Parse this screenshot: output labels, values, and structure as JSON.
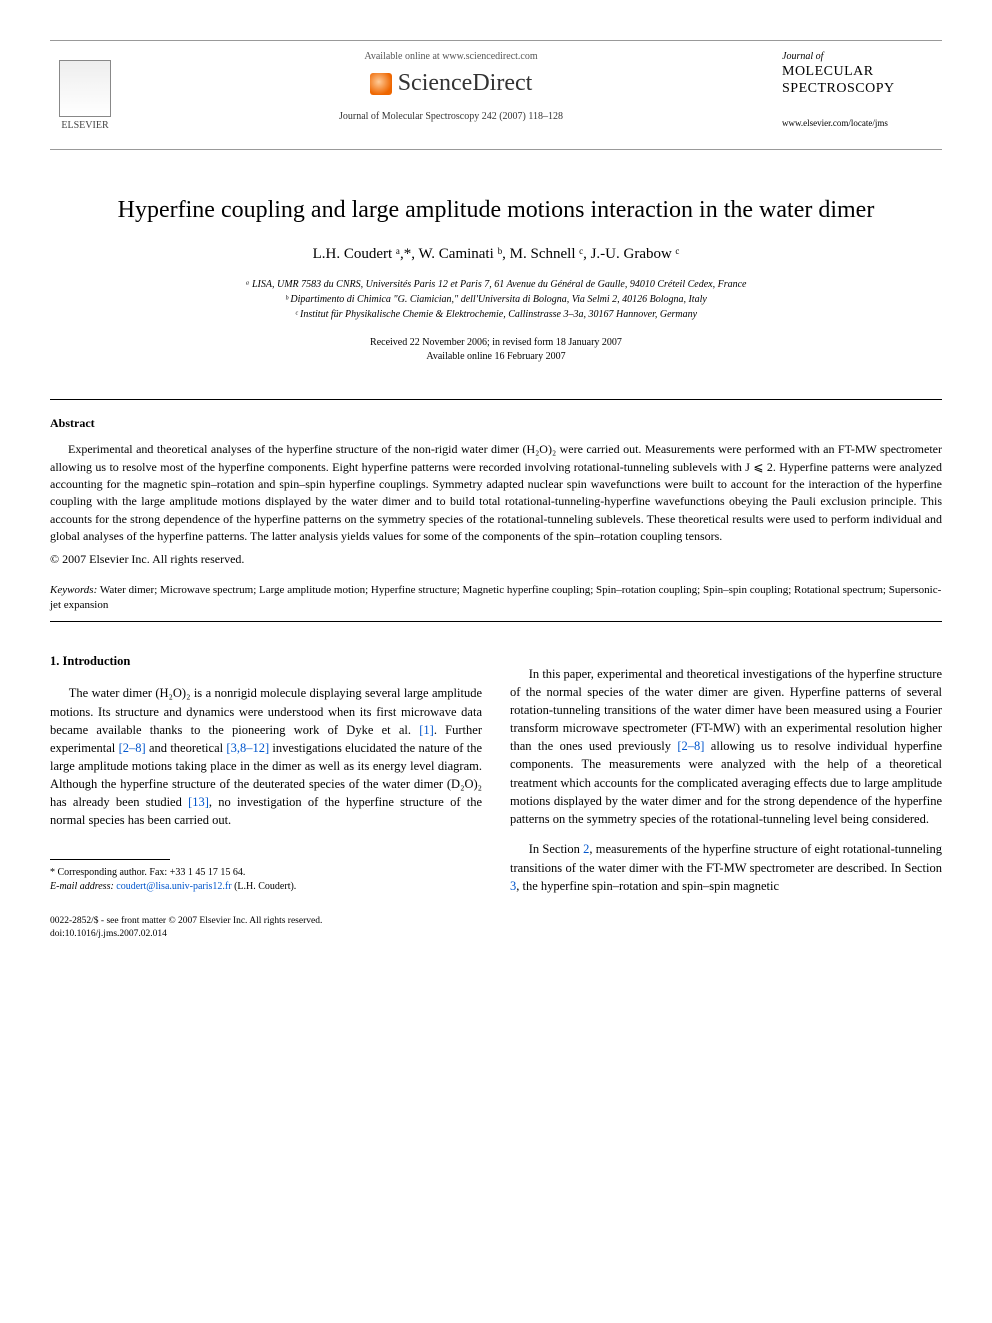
{
  "header": {
    "availability": "Available online at www.sciencedirect.com",
    "sd_brand": "ScienceDirect",
    "journal_ref": "Journal of Molecular Spectroscopy 242 (2007) 118–128",
    "elsevier_label": "ELSEVIER",
    "journal_small": "Journal of",
    "journal_big": "MOLECULAR SPECTROSCOPY",
    "journal_url": "www.elsevier.com/locate/jms"
  },
  "title": "Hyperfine coupling and large amplitude motions interaction in the water dimer",
  "authors": "L.H. Coudert ᵃ,*, W. Caminati ᵇ, M. Schnell ᶜ, J.-U. Grabow ᶜ",
  "affiliations": {
    "a": "ᵃ LISA, UMR 7583 du CNRS, Universités Paris 12 et Paris 7, 61 Avenue du Général de Gaulle, 94010 Créteil Cedex, France",
    "b": "ᵇ Dipartimento di Chimica \"G. Ciamician,\" dell'Universita di Bologna, Via Selmi 2, 40126 Bologna, Italy",
    "c": "ᶜ Institut für Physikalische Chemie & Elektrochemie, Callinstrasse 3–3a, 30167 Hannover, Germany"
  },
  "dates": {
    "received": "Received 22 November 2006; in revised form 18 January 2007",
    "online": "Available online 16 February 2007"
  },
  "abstract_heading": "Abstract",
  "abstract_text": "Experimental and theoretical analyses of the hyperfine structure of the non-rigid water dimer (H₂O)₂ were carried out. Measurements were performed with an FT-MW spectrometer allowing us to resolve most of the hyperfine components. Eight hyperfine patterns were recorded involving rotational-tunneling sublevels with J ⩽ 2. Hyperfine patterns were analyzed accounting for the magnetic spin–rotation and spin–spin hyperfine couplings. Symmetry adapted nuclear spin wavefunctions were built to account for the interaction of the hyperfine coupling with the large amplitude motions displayed by the water dimer and to build total rotational-tunneling-hyperfine wavefunctions obeying the Pauli exclusion principle. This accounts for the strong dependence of the hyperfine patterns on the symmetry species of the rotational-tunneling sublevels. These theoretical results were used to perform individual and global analyses of the hyperfine patterns. The latter analysis yields values for some of the components of the spin–rotation coupling tensors.",
  "copyright": "© 2007 Elsevier Inc. All rights reserved.",
  "keywords_label": "Keywords:",
  "keywords": "Water dimer; Microwave spectrum; Large amplitude motion; Hyperfine structure; Magnetic hyperfine coupling; Spin–rotation coupling; Spin–spin coupling; Rotational spectrum; Supersonic-jet expansion",
  "section1_heading": "1. Introduction",
  "col1_p1a": "The water dimer (H₂O)₂ is a nonrigid molecule displaying several large amplitude motions. Its structure and dynamics were understood when its first microwave data became available thanks to the pioneering work of Dyke et al. ",
  "col1_ref1": "[1]",
  "col1_p1b": ". Further experimental ",
  "col1_ref2": "[2–8]",
  "col1_p1c": " and theoretical ",
  "col1_ref3": "[3,8–12]",
  "col1_p1d": " investigations elucidated the nature of the large amplitude motions taking place in the dimer as well as its energy level diagram. Although the hyperfine structure of the deuterated species of the water dimer (D₂O)₂ has already been studied ",
  "col1_ref4": "[13]",
  "col1_p1e": ", no investigation of the hyperfine structure of the normal species has been carried out.",
  "col2_p1a": "In this paper, experimental and theoretical investigations of the hyperfine structure of the normal species of the water dimer are given. Hyperfine patterns of several rotation-tunneling transitions of the water dimer have been measured using a Fourier transform microwave spectrometer (FT-MW) with an experimental resolution higher than the ones used previously ",
  "col2_ref1": "[2–8]",
  "col2_p1b": " allowing us to resolve individual hyperfine components. The measurements were analyzed with the help of a theoretical treatment which accounts for the complicated averaging effects due to large amplitude motions displayed by the water dimer and for the strong dependence of the hyperfine patterns on the symmetry species of the rotational-tunneling level being considered.",
  "col2_p2a": "In Section ",
  "col2_ref2": "2",
  "col2_p2b": ", measurements of the hyperfine structure of eight rotational-tunneling transitions of the water dimer with the FT-MW spectrometer are described. In Section ",
  "col2_ref3": "3",
  "col2_p2c": ", the hyperfine spin–rotation and spin–spin magnetic",
  "footnote_corr": "* Corresponding author. Fax: +33 1 45 17 15 64.",
  "footnote_email_label": "E-mail address:",
  "footnote_email": "coudert@lisa.univ-paris12.fr",
  "footnote_name": "(L.H. Coudert).",
  "footer_line1": "0022-2852/$ - see front matter © 2007 Elsevier Inc. All rights reserved.",
  "footer_line2": "doi:10.1016/j.jms.2007.02.014"
}
